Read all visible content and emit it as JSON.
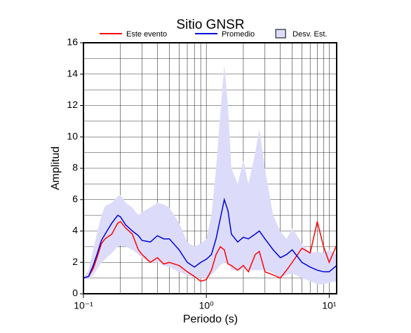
{
  "chart_data": {
    "type": "line",
    "title": "Sitio GNSR",
    "xlabel": "Periodo (s)",
    "ylabel": "Amplitud",
    "xscale": "log",
    "grid": true,
    "xlim": [
      0.1,
      11.5
    ],
    "xticks": [
      {
        "value": 0.1,
        "label": "10⁻¹"
      },
      {
        "value": 1,
        "label": "10⁰"
      },
      {
        "value": 10,
        "label": "10¹"
      }
    ],
    "ylim": [
      0,
      16
    ],
    "yticks": [
      0,
      2,
      4,
      6,
      8,
      10,
      12,
      14,
      16
    ],
    "x": [
      0.1,
      0.11,
      0.12,
      0.13,
      0.14,
      0.15,
      0.17,
      0.19,
      0.2,
      0.22,
      0.25,
      0.28,
      0.3,
      0.35,
      0.4,
      0.45,
      0.5,
      0.6,
      0.7,
      0.8,
      0.9,
      1.0,
      1.1,
      1.2,
      1.3,
      1.4,
      1.5,
      1.6,
      1.8,
      2.0,
      2.2,
      2.5,
      2.7,
      3.0,
      3.5,
      4.0,
      4.5,
      5,
      6,
      7,
      8,
      9,
      10,
      11.5
    ],
    "band": {
      "name": "Desv. Est.",
      "color": "#dcdcfa",
      "upper": [
        1.0,
        1.5,
        2.8,
        4.0,
        5.0,
        5.6,
        5.8,
        6.2,
        6.3,
        5.8,
        5.5,
        5.0,
        5.2,
        5.5,
        5.8,
        5.7,
        5.5,
        4.5,
        3.3,
        3.0,
        3.2,
        3.5,
        5.0,
        8.0,
        11.5,
        14.6,
        12.0,
        8.0,
        7.0,
        8.5,
        7.0,
        9.0,
        10.5,
        8.0,
        5.0,
        4.0,
        3.5,
        4.2,
        3.2,
        2.6,
        2.7,
        2.6,
        2.8,
        2.5
      ],
      "lower": [
        1.0,
        0.9,
        1.2,
        1.6,
        2.0,
        2.2,
        2.6,
        3.0,
        3.1,
        3.0,
        2.8,
        2.5,
        2.3,
        2.0,
        2.0,
        1.8,
        1.7,
        1.4,
        1.2,
        1.0,
        1.0,
        1.0,
        1.2,
        1.5,
        1.8,
        2.0,
        2.0,
        1.5,
        1.5,
        1.6,
        1.5,
        1.5,
        1.5,
        1.5,
        1.3,
        1.0,
        1.2,
        1.3,
        1.0,
        0.8,
        0.6,
        0.6,
        0.7,
        0.8
      ]
    },
    "series": [
      {
        "name": "Este evento",
        "color": "#ff0000",
        "values": [
          1.0,
          1.1,
          1.6,
          2.4,
          3.2,
          3.5,
          3.8,
          4.5,
          4.6,
          4.2,
          3.8,
          2.8,
          2.5,
          2.0,
          2.3,
          1.9,
          2.0,
          1.8,
          1.4,
          1.1,
          0.8,
          0.9,
          1.5,
          2.5,
          3.0,
          2.8,
          1.9,
          1.8,
          1.5,
          1.8,
          1.4,
          2.5,
          2.7,
          1.4,
          1.2,
          1.0,
          1.5,
          2.0,
          2.9,
          2.6,
          4.6,
          3.0,
          2.0,
          3.1
        ]
      },
      {
        "name": "Promedio",
        "color": "#0000dd",
        "values": [
          1.0,
          1.1,
          1.8,
          2.6,
          3.4,
          3.8,
          4.5,
          5.0,
          4.9,
          4.4,
          4.0,
          3.7,
          3.4,
          3.3,
          3.7,
          3.5,
          3.5,
          2.8,
          2.0,
          1.7,
          2.0,
          2.2,
          2.5,
          3.5,
          4.8,
          6.0,
          5.3,
          3.8,
          3.3,
          3.6,
          3.5,
          3.8,
          4.0,
          3.5,
          2.8,
          2.3,
          2.5,
          2.8,
          2.0,
          1.7,
          1.5,
          1.4,
          1.4,
          1.8
        ]
      }
    ]
  }
}
